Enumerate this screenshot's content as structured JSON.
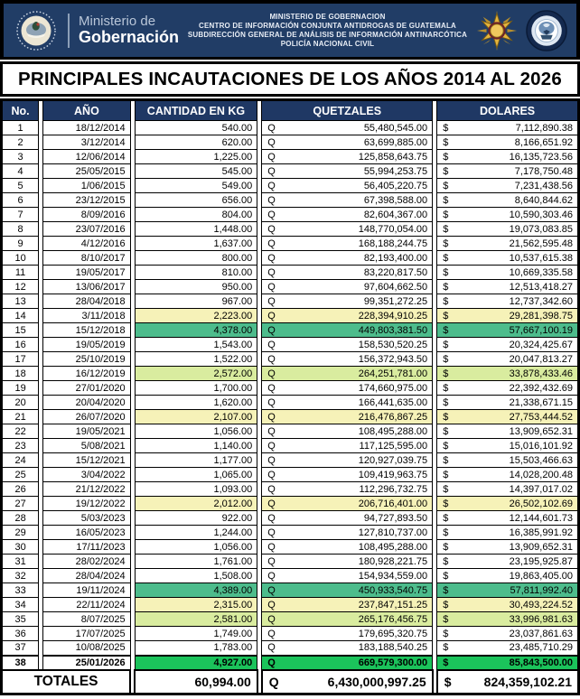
{
  "banner": {
    "logo": {
      "seal": "guatemala-coat-of-arms",
      "line1": "Ministerio de",
      "line2": "Gobernación"
    },
    "center_lines": [
      "MINISTERIO DE GOBERNACION",
      "CENTRO DE INFORMACIÓN CONJUNTA ANTIDROGAS DE GUATEMALA",
      "SUBDIRECCIÓN GENERAL DE ANÁLISIS DE INFORMACIÓN ANTINARCÓTICA",
      "POLICÍA NACIONAL CIVIL"
    ],
    "badges": [
      "police-medal",
      "antinarcotics-seal"
    ]
  },
  "title": "PRINCIPALES INCAUTACIONES DE LOS AÑOS 2014 AL 2026",
  "colors": {
    "banner_navy": "#213d66",
    "header_navy": "#1F3864",
    "highlight_yellow": "#F6F2B8",
    "highlight_lightgreen": "#D9EC9F",
    "highlight_green": "#4DBC8C",
    "highlight_bright_green": "#1BC35B",
    "border": "#000000"
  },
  "table": {
    "columns": [
      "No.",
      "AÑO",
      "CANTIDAD EN KG",
      "QUETZALES",
      "DOLARES"
    ],
    "symbols": {
      "quetzal": "Q",
      "dollar": "$"
    },
    "rows": [
      {
        "no": "1",
        "date": "18/12/2014",
        "kg": "540.00",
        "q": "55,480,545.00",
        "usd": "7,112,890.38",
        "highlight": "none"
      },
      {
        "no": "2",
        "date": "3/12/2014",
        "kg": "620.00",
        "q": "63,699,885.00",
        "usd": "8,166,651.92",
        "highlight": "none"
      },
      {
        "no": "3",
        "date": "12/06/2014",
        "kg": "1,225.00",
        "q": "125,858,643.75",
        "usd": "16,135,723.56",
        "highlight": "none"
      },
      {
        "no": "4",
        "date": "25/05/2015",
        "kg": "545.00",
        "q": "55,994,253.75",
        "usd": "7,178,750.48",
        "highlight": "none"
      },
      {
        "no": "5",
        "date": "1/06/2015",
        "kg": "549.00",
        "q": "56,405,220.75",
        "usd": "7,231,438.56",
        "highlight": "none"
      },
      {
        "no": "6",
        "date": "23/12/2015",
        "kg": "656.00",
        "q": "67,398,588.00",
        "usd": "8,640,844.62",
        "highlight": "none"
      },
      {
        "no": "7",
        "date": "8/09/2016",
        "kg": "804.00",
        "q": "82,604,367.00",
        "usd": "10,590,303.46",
        "highlight": "none"
      },
      {
        "no": "8",
        "date": "23/07/2016",
        "kg": "1,448.00",
        "q": "148,770,054.00",
        "usd": "19,073,083.85",
        "highlight": "none"
      },
      {
        "no": "9",
        "date": "4/12/2016",
        "kg": "1,637.00",
        "q": "168,188,244.75",
        "usd": "21,562,595.48",
        "highlight": "none"
      },
      {
        "no": "10",
        "date": "8/10/2017",
        "kg": "800.00",
        "q": "82,193,400.00",
        "usd": "10,537,615.38",
        "highlight": "none"
      },
      {
        "no": "11",
        "date": "19/05/2017",
        "kg": "810.00",
        "q": "83,220,817.50",
        "usd": "10,669,335.58",
        "highlight": "none"
      },
      {
        "no": "12",
        "date": "13/06/2017",
        "kg": "950.00",
        "q": "97,604,662.50",
        "usd": "12,513,418.27",
        "highlight": "none"
      },
      {
        "no": "13",
        "date": "28/04/2018",
        "kg": "967.00",
        "q": "99,351,272.25",
        "usd": "12,737,342.60",
        "highlight": "none"
      },
      {
        "no": "14",
        "date": "3/11/2018",
        "kg": "2,223.00",
        "q": "228,394,910.25",
        "usd": "29,281,398.75",
        "highlight": "yellow"
      },
      {
        "no": "15",
        "date": "15/12/2018",
        "kg": "4,378.00",
        "q": "449,803,381.50",
        "usd": "57,667,100.19",
        "highlight": "green"
      },
      {
        "no": "16",
        "date": "19/05/2019",
        "kg": "1,543.00",
        "q": "158,530,520.25",
        "usd": "20,324,425.67",
        "highlight": "none"
      },
      {
        "no": "17",
        "date": "25/10/2019",
        "kg": "1,522.00",
        "q": "156,372,943.50",
        "usd": "20,047,813.27",
        "highlight": "none"
      },
      {
        "no": "18",
        "date": "16/12/2019",
        "kg": "2,572.00",
        "q": "264,251,781.00",
        "usd": "33,878,433.46",
        "highlight": "lightgreen"
      },
      {
        "no": "19",
        "date": "27/01/2020",
        "kg": "1,700.00",
        "q": "174,660,975.00",
        "usd": "22,392,432.69",
        "highlight": "none"
      },
      {
        "no": "20",
        "date": "20/04/2020",
        "kg": "1,620.00",
        "q": "166,441,635.00",
        "usd": "21,338,671.15",
        "highlight": "none"
      },
      {
        "no": "21",
        "date": "26/07/2020",
        "kg": "2,107.00",
        "q": "216,476,867.25",
        "usd": "27,753,444.52",
        "highlight": "yellow"
      },
      {
        "no": "22",
        "date": "19/05/2021",
        "kg": "1,056.00",
        "q": "108,495,288.00",
        "usd": "13,909,652.31",
        "highlight": "none"
      },
      {
        "no": "23",
        "date": "5/08/2021",
        "kg": "1,140.00",
        "q": "117,125,595.00",
        "usd": "15,016,101.92",
        "highlight": "none"
      },
      {
        "no": "24",
        "date": "15/12/2021",
        "kg": "1,177.00",
        "q": "120,927,039.75",
        "usd": "15,503,466.63",
        "highlight": "none"
      },
      {
        "no": "25",
        "date": "3/04/2022",
        "kg": "1,065.00",
        "q": "109,419,963.75",
        "usd": "14,028,200.48",
        "highlight": "none"
      },
      {
        "no": "26",
        "date": "21/12/2022",
        "kg": "1,093.00",
        "q": "112,296,732.75",
        "usd": "14,397,017.02",
        "highlight": "none"
      },
      {
        "no": "27",
        "date": "19/12/2022",
        "kg": "2,012.00",
        "q": "206,716,401.00",
        "usd": "26,502,102.69",
        "highlight": "yellow"
      },
      {
        "no": "28",
        "date": "5/03/2023",
        "kg": "922.00",
        "q": "94,727,893.50",
        "usd": "12,144,601.73",
        "highlight": "none"
      },
      {
        "no": "29",
        "date": "16/05/2023",
        "kg": "1,244.00",
        "q": "127,810,737.00",
        "usd": "16,385,991.92",
        "highlight": "none"
      },
      {
        "no": "30",
        "date": "17/11/2023",
        "kg": "1,056.00",
        "q": "108,495,288.00",
        "usd": "13,909,652.31",
        "highlight": "none"
      },
      {
        "no": "31",
        "date": "28/02/2024",
        "kg": "1,761.00",
        "q": "180,928,221.75",
        "usd": "23,195,925.87",
        "highlight": "none"
      },
      {
        "no": "32",
        "date": "28/04/2024",
        "kg": "1,508.00",
        "q": "154,934,559.00",
        "usd": "19,863,405.00",
        "highlight": "none"
      },
      {
        "no": "33",
        "date": "19/11/2024",
        "kg": "4,389.00",
        "q": "450,933,540.75",
        "usd": "57,811,992.40",
        "highlight": "green"
      },
      {
        "no": "34",
        "date": "22/11/2024",
        "kg": "2,315.00",
        "q": "237,847,151.25",
        "usd": "30,493,224.52",
        "highlight": "yellow"
      },
      {
        "no": "35",
        "date": "8/07/2025",
        "kg": "2,581.00",
        "q": "265,176,456.75",
        "usd": "33,996,981.63",
        "highlight": "lightgreen"
      },
      {
        "no": "36",
        "date": "17/07/2025",
        "kg": "1,749.00",
        "q": "179,695,320.75",
        "usd": "23,037,861.63",
        "highlight": "none"
      },
      {
        "no": "37",
        "date": "10/08/2025",
        "kg": "1,783.00",
        "q": "183,188,540.25",
        "usd": "23,485,710.29",
        "highlight": "none"
      },
      {
        "no": "38",
        "date": "25/01/2026",
        "kg": "4,927.00",
        "q": "669,579,300.00",
        "usd": "85,843,500.00",
        "highlight": "bright"
      }
    ],
    "totals": {
      "label": "TOTALES",
      "kg": "60,994.00",
      "q": "6,430,000,997.25",
      "usd": "824,359,102.21"
    }
  }
}
